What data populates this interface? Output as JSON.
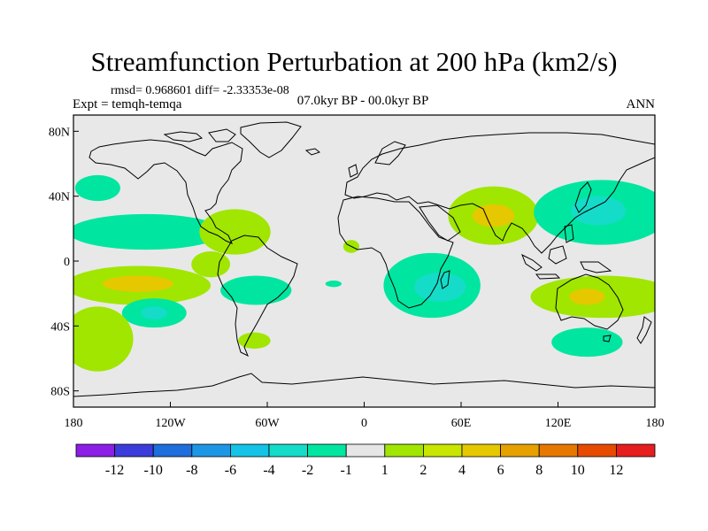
{
  "title": "Streamfunction Perturbation at 200 hPa (km2/s)",
  "stats": "rmsd= 0.968601 diff= -2.33353e-08",
  "experiment": "Expt = temqh-temqa",
  "period": "07.0kyr BP - 00.0kyr BP",
  "season": "ANN",
  "map": {
    "lon_ticks": [
      "180",
      "120W",
      "60W",
      "0",
      "60E",
      "120E",
      "180"
    ],
    "lon_values": [
      -180,
      -120,
      -60,
      0,
      60,
      120,
      180
    ],
    "lat_ticks": [
      "80N",
      "40N",
      "0",
      "40S",
      "80S"
    ],
    "lat_values": [
      80,
      40,
      0,
      -40,
      -80
    ],
    "lat_range": [
      -90,
      90
    ],
    "lon_range": [
      -180,
      180
    ],
    "background_color": "#e8e8e8",
    "anomalies": [
      {
        "name": "n-pacific-west-neg",
        "lon": -165,
        "lat": 45,
        "rx": 14,
        "ry": 8,
        "level": -1
      },
      {
        "name": "n-pacific-band-neg",
        "lon": -135,
        "lat": 18,
        "rx": 48,
        "ry": 11,
        "level": -1
      },
      {
        "name": "central-america-pos",
        "lon": -80,
        "lat": 18,
        "rx": 22,
        "ry": 14,
        "level": 1
      },
      {
        "name": "s-america-pos",
        "lon": -95,
        "lat": -2,
        "rx": 12,
        "ry": 8,
        "level": 1
      },
      {
        "name": "s-pacific-pos",
        "lon": -140,
        "lat": -15,
        "rx": 45,
        "ry": 12,
        "level": 1
      },
      {
        "name": "s-pacific-pos-core",
        "lon": -140,
        "lat": -14,
        "rx": 22,
        "ry": 5,
        "level": 2
      },
      {
        "name": "s-pacific-neg",
        "lon": -130,
        "lat": -32,
        "rx": 20,
        "ry": 9,
        "level": -1
      },
      {
        "name": "s-pacific-neg-core",
        "lon": -130,
        "lat": -32,
        "rx": 8,
        "ry": 4,
        "level": -2
      },
      {
        "name": "s-america-neg",
        "lon": -67,
        "lat": -18,
        "rx": 22,
        "ry": 9,
        "level": -1
      },
      {
        "name": "patagonia-pos",
        "lon": -68,
        "lat": -49,
        "rx": 10,
        "ry": 5,
        "level": 1
      },
      {
        "name": "atlantic-neg",
        "lon": -19,
        "lat": -14,
        "rx": 5,
        "ry": 2,
        "level": -1
      },
      {
        "name": "w-africa-pos",
        "lon": -8,
        "lat": 9,
        "rx": 5,
        "ry": 4,
        "level": 1
      },
      {
        "name": "s-pacific-far-pos",
        "lon": -165,
        "lat": -48,
        "rx": 22,
        "ry": 20,
        "level": 1
      },
      {
        "name": "s-indian-neg",
        "lon": 42,
        "lat": -15,
        "rx": 30,
        "ry": 20,
        "level": -1
      },
      {
        "name": "s-indian-neg-core",
        "lon": 47,
        "lat": -16,
        "rx": 16,
        "ry": 9,
        "level": -2
      },
      {
        "name": "s-asia-pos",
        "lon": 80,
        "lat": 28,
        "rx": 28,
        "ry": 18,
        "level": 1
      },
      {
        "name": "s-asia-pos-core",
        "lon": 80,
        "lat": 28,
        "rx": 13,
        "ry": 7,
        "level": 2
      },
      {
        "name": "w-pacific-neg",
        "lon": 147,
        "lat": 30,
        "rx": 42,
        "ry": 20,
        "level": -1
      },
      {
        "name": "w-pacific-neg-core",
        "lon": 145,
        "lat": 31,
        "rx": 17,
        "ry": 9,
        "level": -2
      },
      {
        "name": "australia-pos",
        "lon": 148,
        "lat": -22,
        "rx": 45,
        "ry": 13,
        "level": 1
      },
      {
        "name": "australia-pos-core",
        "lon": 138,
        "lat": -22,
        "rx": 11,
        "ry": 5,
        "level": 2
      },
      {
        "name": "s-ocean-neg",
        "lon": 138,
        "lat": -50,
        "rx": 22,
        "ry": 9,
        "level": -1
      }
    ]
  },
  "colorbar": {
    "labels": [
      "-12",
      "-10",
      "-8",
      "-6",
      "-4",
      "-2",
      "-1",
      "1",
      "2",
      "4",
      "6",
      "8",
      "10",
      "12"
    ],
    "colors": [
      "#8c1ee6",
      "#3c3cdc",
      "#1e6edc",
      "#1e96e6",
      "#14c3e6",
      "#14dcc8",
      "#00e6a0",
      "#e6e6e6",
      "#a0e600",
      "#c8e600",
      "#e6c800",
      "#e6a000",
      "#e67800",
      "#e64b00",
      "#e61e1e"
    ],
    "level_colors": {
      "-2": "#14dcc8",
      "-1": "#00e6a0",
      "1": "#a0e600",
      "2": "#e6c800"
    }
  }
}
